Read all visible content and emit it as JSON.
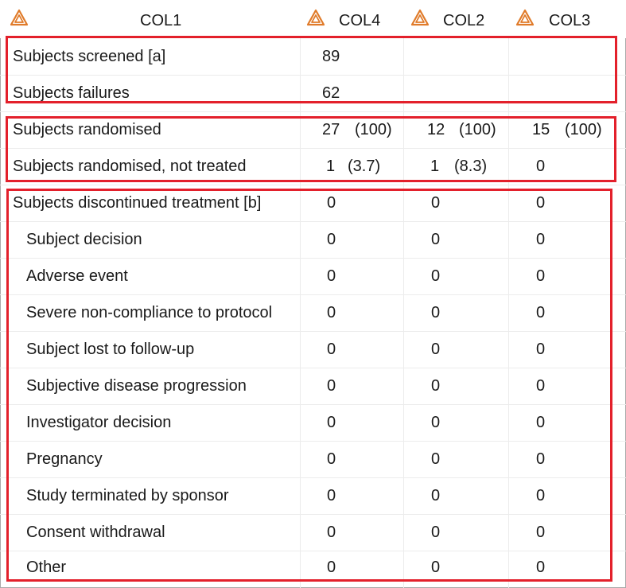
{
  "header": {
    "columns": [
      {
        "label": "COL1",
        "icon": "warning-triangle-icon"
      },
      {
        "label": "COL4",
        "icon": "warning-triangle-icon"
      },
      {
        "label": "COL2",
        "icon": "warning-triangle-icon"
      },
      {
        "label": "COL3",
        "icon": "warning-triangle-icon"
      }
    ],
    "icon_color": "#e07b2a"
  },
  "rows": [
    {
      "label": "Subjects screened [a]",
      "col4": "89",
      "col4_pct": "",
      "col2": "",
      "col2_pct": "",
      "col3": "",
      "col3_pct": ""
    },
    {
      "label": "Subjects failures",
      "col4": "62",
      "col4_pct": "",
      "col2": "",
      "col2_pct": "",
      "col3": "",
      "col3_pct": ""
    },
    {
      "label": "Subjects randomised",
      "col4": "27",
      "col4_pct": "(100)",
      "col2": "12",
      "col2_pct": "(100)",
      "col3": "15",
      "col3_pct": "(100)"
    },
    {
      "label": "Subjects randomised, not treated",
      "col4": "1",
      "col4_pct": "(3.7)",
      "col2": "1",
      "col2_pct": "(8.3)",
      "col3": "0",
      "col3_pct": ""
    },
    {
      "label": "Subjects discontinued treatment [b]",
      "col4": "0",
      "col4_pct": "",
      "col2": "0",
      "col2_pct": "",
      "col3": "0",
      "col3_pct": ""
    },
    {
      "label": "Subject decision",
      "col4": "0",
      "col4_pct": "",
      "col2": "0",
      "col2_pct": "",
      "col3": "0",
      "col3_pct": ""
    },
    {
      "label": "Adverse event",
      "col4": "0",
      "col4_pct": "",
      "col2": "0",
      "col2_pct": "",
      "col3": "0",
      "col3_pct": ""
    },
    {
      "label": "Severe non-compliance to protocol",
      "col4": "0",
      "col4_pct": "",
      "col2": "0",
      "col2_pct": "",
      "col3": "0",
      "col3_pct": ""
    },
    {
      "label": "Subject lost to follow-up",
      "col4": "0",
      "col4_pct": "",
      "col2": "0",
      "col2_pct": "",
      "col3": "0",
      "col3_pct": ""
    },
    {
      "label": "Subjective disease progression",
      "col4": "0",
      "col4_pct": "",
      "col2": "0",
      "col2_pct": "",
      "col3": "0",
      "col3_pct": ""
    },
    {
      "label": "Investigator decision",
      "col4": "0",
      "col4_pct": "",
      "col2": "0",
      "col2_pct": "",
      "col3": "0",
      "col3_pct": ""
    },
    {
      "label": "Pregnancy",
      "col4": "0",
      "col4_pct": "",
      "col2": "0",
      "col2_pct": "",
      "col3": "0",
      "col3_pct": ""
    },
    {
      "label": "Study terminated by sponsor",
      "col4": "0",
      "col4_pct": "",
      "col2": "0",
      "col2_pct": "",
      "col3": "0",
      "col3_pct": ""
    },
    {
      "label": "Consent withdrawal",
      "col4": "0",
      "col4_pct": "",
      "col2": "0",
      "col2_pct": "",
      "col3": "0",
      "col3_pct": ""
    },
    {
      "label": "Other",
      "col4": "0",
      "col4_pct": "",
      "col2": "0",
      "col2_pct": "",
      "col3": "0",
      "col3_pct": ""
    }
  ],
  "highlight_color": "#e3202b"
}
